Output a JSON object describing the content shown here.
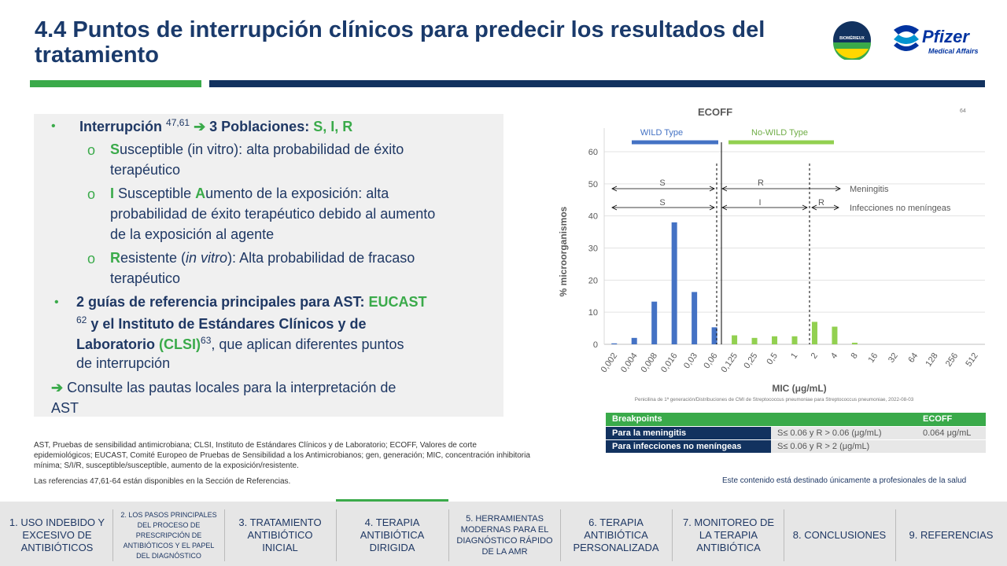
{
  "title": "4.4 Puntos de interrupción clínicos para predecir los resultados del tratamiento",
  "logos": {
    "biomerieux": "BIOMÉRIEUX",
    "pfizer": "Pfizer",
    "pfizer_sub": "Medical Affairs"
  },
  "bullets": {
    "b1_a": "Interrupción ",
    "b1_sup": "47,61",
    "b1_arrow": "➔",
    "b1_b": " 3 Poblaciones: ",
    "b1_c": "S, I, R",
    "s_letter": "S",
    "s_rest": "usceptible (in vitro): alta probabilidad de éxito",
    "s_line2": "terapéutico",
    "i_letter": "I",
    "i_mid": " Susceptible ",
    "i_a": "A",
    "i_rest": "umento de la exposición: alta",
    "i_line2": "probabilidad de éxito terapéutico debido al aumento",
    "i_line3": "de la exposición al agente",
    "r_letter": "R",
    "r_rest1": "esistente (",
    "r_italic": "in vitro",
    "r_rest2": "): Alta probabilidad de fracaso",
    "r_line2": "terapéutico",
    "b2_a": "2 guías de referencia principales para AST: ",
    "b2_eucast": "EUCAST",
    "b2_sup1": "62",
    "b2_b": " y el Instituto de Estándares Clínicos y de",
    "b2_c": "Laboratorio ",
    "b2_clsi": "(CLSI)",
    "b2_sup2": "63",
    "b2_d": ", que aplican diferentes puntos",
    "b2_e": "de interrupción",
    "b3_arrow": "➔",
    "b3_a": " Consulte las pautas locales para la interpretación de",
    "b3_b": "AST",
    "circle": "o",
    "dot": "•"
  },
  "footnotes": {
    "line1": "AST, Pruebas de sensibilidad antimicrobiana; CLSI, Instituto de Estándares Clínicos y de Laboratorio; ECOFF, Valores de corte",
    "line2": "epidemiológicos; EUCAST, Comité Europeo de Pruebas de Sensibilidad a los Antimicrobianos; gen, generación; MIC, concentración inhibitoria",
    "line3": "mínima; S/I/R, susceptible/susceptible, aumento de la exposición/resistente.",
    "refs": "Las referencias 47,61-64 están disponibles en la Sección de Referencias."
  },
  "disclaimer": "Este contenido está destinado únicamente a profesionales de la salud",
  "chart_data": {
    "type": "bar",
    "title": "ECOFF",
    "ref_sup": "64",
    "xlabel": "MIC (μg/mL)",
    "ylabel": "% microorganismos",
    "ylim": [
      0,
      60
    ],
    "yticks": [
      0,
      10,
      20,
      30,
      40,
      50,
      60
    ],
    "categories": [
      "0,002",
      "0,004",
      "0,008",
      "0,016",
      "0,03",
      "0,06",
      "0,125",
      "0,25",
      "0,5",
      "1",
      "2",
      "4",
      "8",
      "16",
      "32",
      "64",
      "128",
      "256",
      "512"
    ],
    "values": [
      0.3,
      2,
      13.3,
      38,
      16.3,
      5.3,
      2.8,
      2,
      2.5,
      2.5,
      7,
      5.5,
      0.5,
      0,
      0,
      0,
      0,
      0,
      0
    ],
    "colors": {
      "wild": "#4472c4",
      "nonwild": "#92d050"
    },
    "wild_count": 6,
    "grid": true,
    "wild_label": "WILD Type",
    "nonwild_label": "No-WILD Type",
    "s_label": "S",
    "r_label": "R",
    "i_label": "I",
    "meningitis": "Meningitis",
    "non_meningeal": "Infecciones no meníngeas",
    "source": "Penicilina de 1ª generación/Distribuciones de CMI de Streptococcus pneumoniae para Streptococcus pneumoniae, 2022-08-03"
  },
  "breakpoints": {
    "h_label": "Breakpoints",
    "h_ecoff": "ECOFF",
    "rows": [
      {
        "label": "Para la meningitis",
        "value": "S≤ 0.06 y R > 0.06 (μg/mL)",
        "ecoff": "0.064 μg/mL"
      },
      {
        "label": "Para infecciones no meníngeas",
        "value": "S≤ 0.06 y R > 2 (μg/mL)",
        "ecoff": ""
      }
    ]
  },
  "nav": [
    "1. USO INDEBIDO Y EXCESIVO DE ANTIBIÓTICOS",
    "2. LOS PASOS PRINCIPALES DEL PROCESO DE PRESCRIPCIÓN DE ANTIBIÓTICOS Y EL PAPEL DEL DIAGNÓSTICO",
    "3. TRATAMIENTO ANTIBIÓTICO INICIAL",
    "4. TERAPIA ANTIBIÓTICA DIRIGIDA",
    "5. HERRAMIENTAS MODERNAS PARA EL DIAGNÓSTICO RÁPIDO DE LA AMR",
    "6. TERAPIA ANTIBIÓTICA PERSONALIZADA",
    "7. MONITOREO DE LA TERAPIA ANTIBIÓTICA",
    "8. CONCLUSIONES",
    "9. REFERENCIAS"
  ]
}
